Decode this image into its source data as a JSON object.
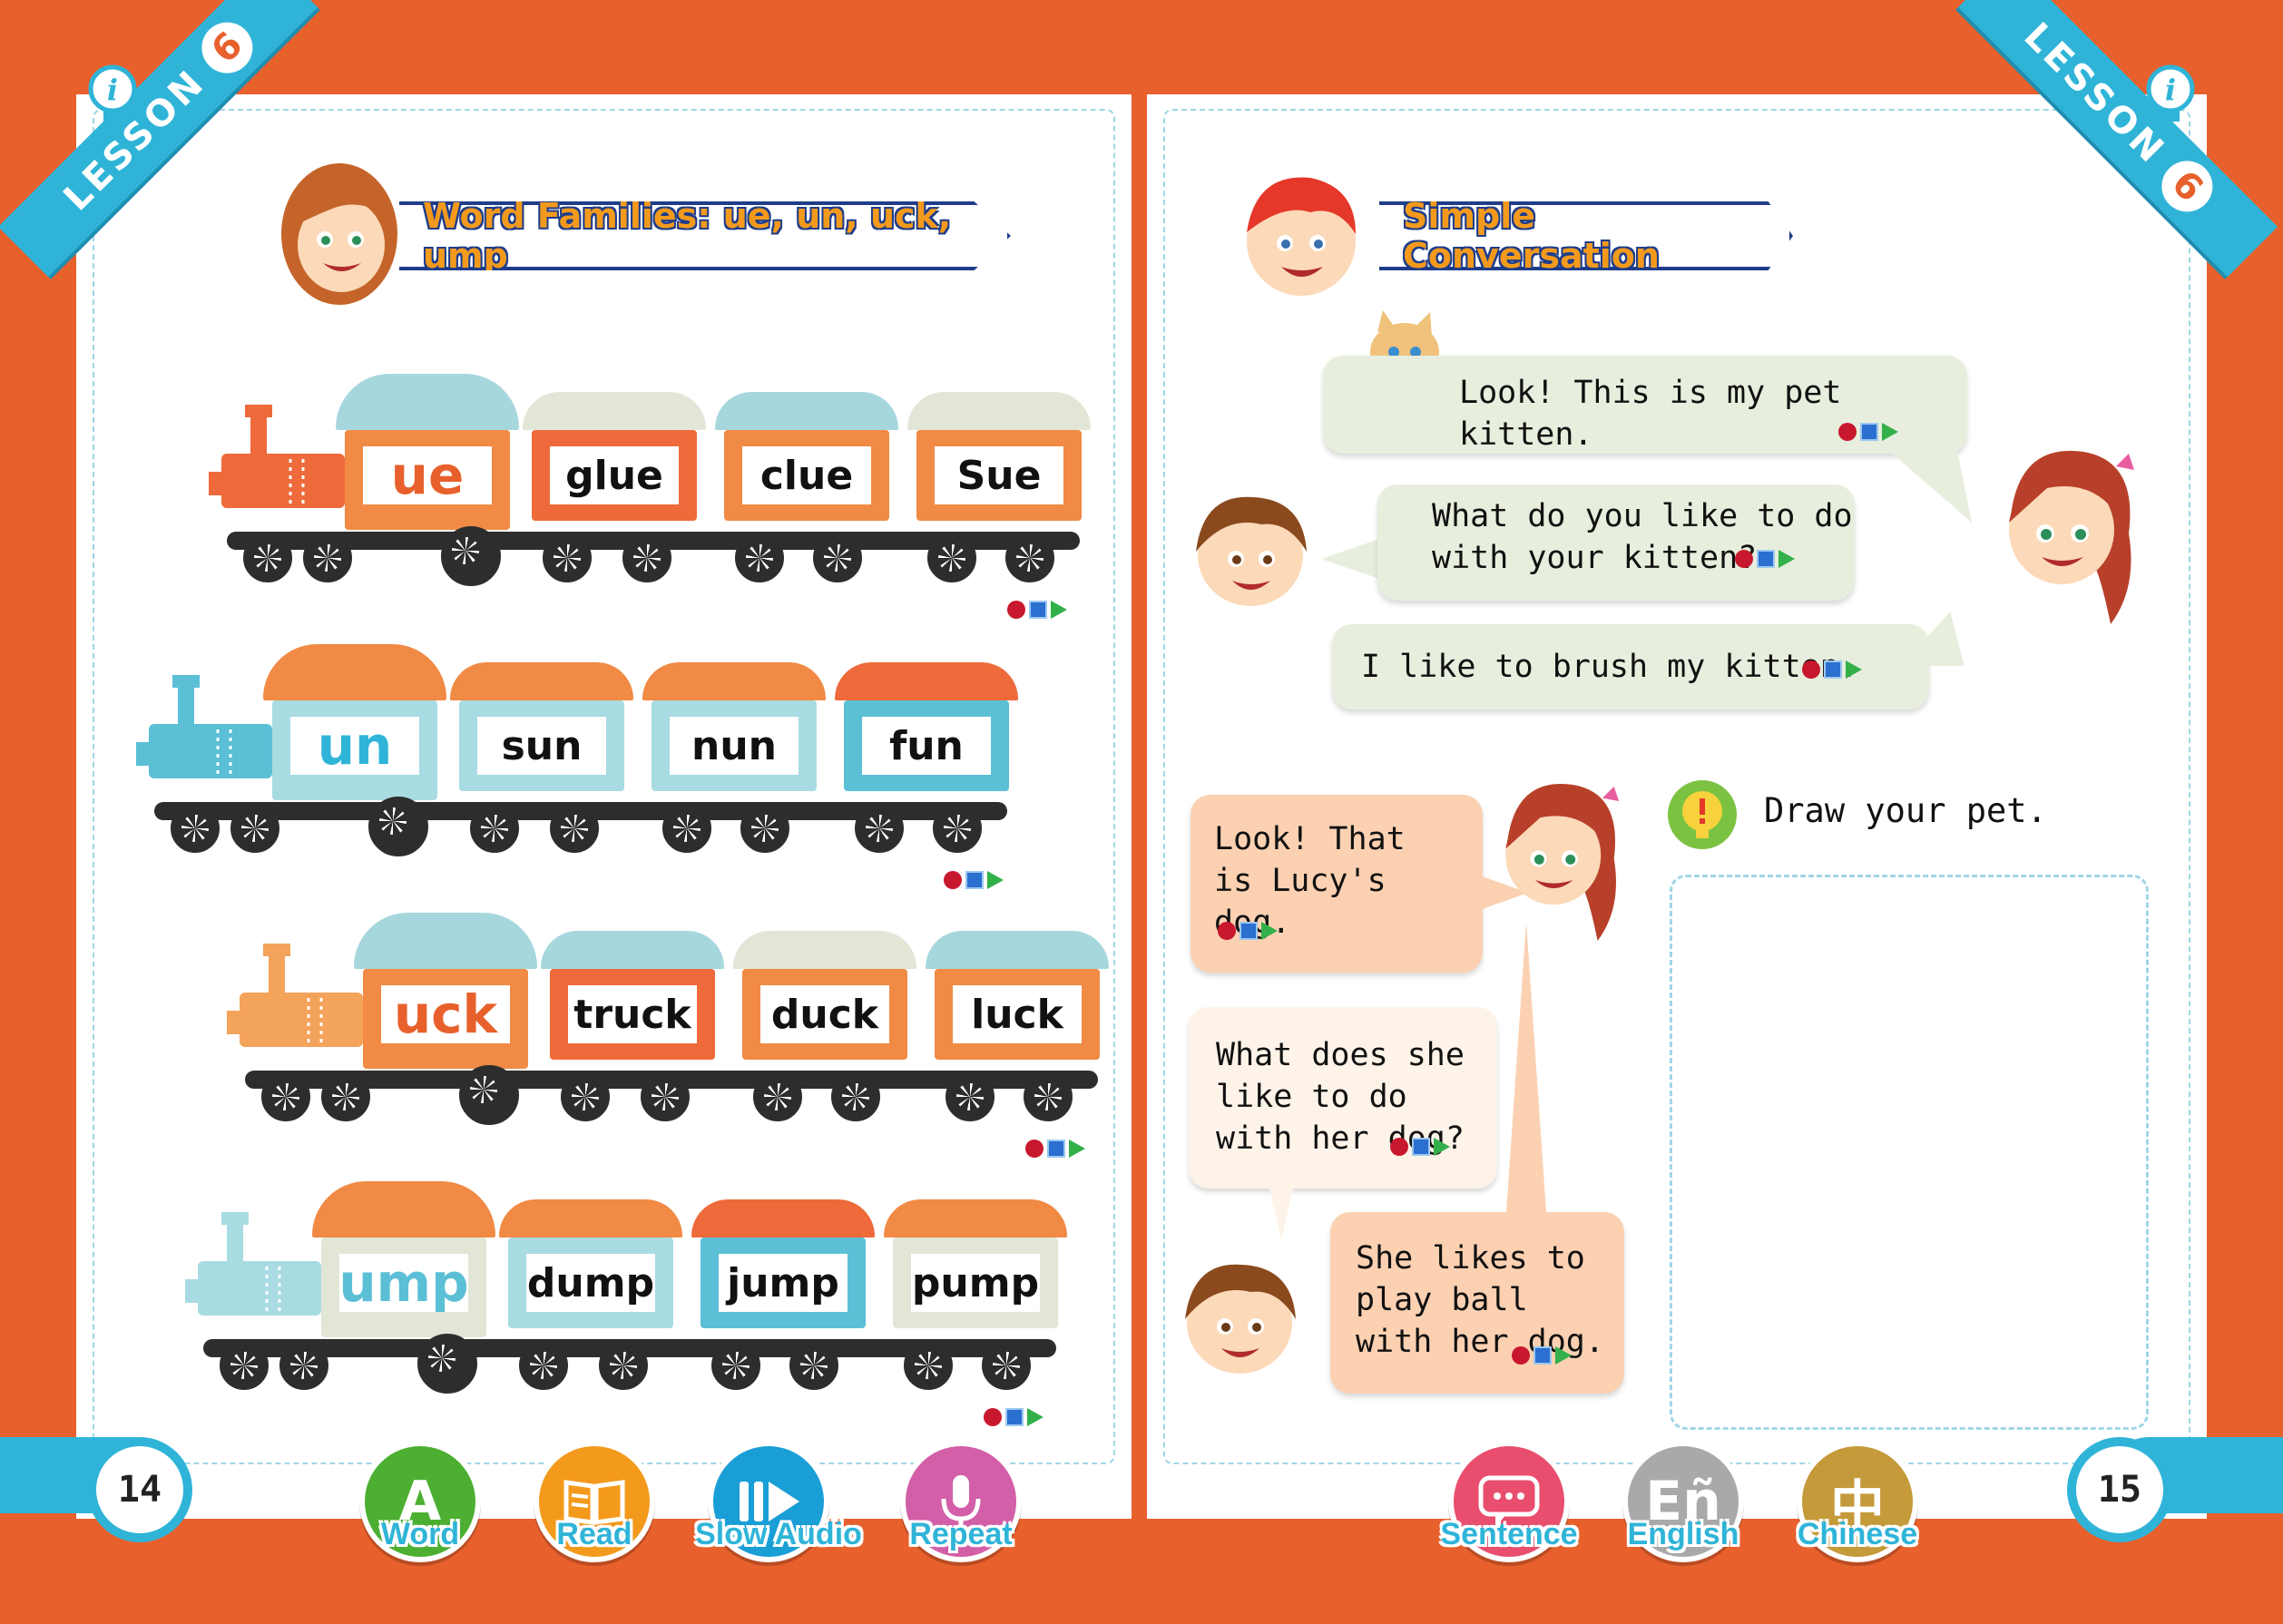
{
  "lesson": {
    "label": "LESSON",
    "number": "6"
  },
  "left_page": {
    "title": "Word Families: ue, un, uck, ump",
    "page_number": "14",
    "trains": [
      {
        "family": "ue",
        "words": [
          "glue",
          "clue",
          "Sue"
        ]
      },
      {
        "family": "un",
        "words": [
          "sun",
          "nun",
          "fun"
        ]
      },
      {
        "family": "uck",
        "words": [
          "truck",
          "duck",
          "luck"
        ]
      },
      {
        "family": "ump",
        "words": [
          "dump",
          "jump",
          "pump"
        ]
      }
    ]
  },
  "right_page": {
    "title": "Simple Conversation",
    "page_number": "15",
    "conversation_1": [
      "Look! This is my pet kitten.",
      "What do you like to do with your kitten?",
      "I like to brush my kitten."
    ],
    "conversation_2": [
      "Look! That is Lucy's dog.",
      "What does she like to do with her dog?",
      "She likes to play ball with her dog."
    ],
    "prompt": "Draw your pet."
  },
  "toolbar": {
    "word": "Word",
    "read": "Read",
    "slow_audio": "Slow Audio",
    "repeat": "Repeat",
    "sentence": "Sentence",
    "english": "English",
    "chinese": "Chinese",
    "english_glyph": "Eñ",
    "chinese_glyph": "中",
    "word_glyph": "A"
  },
  "colors": {
    "background": "#e8602c",
    "accent_blue": "#2fb4d8",
    "orange_car": "#f08a44",
    "teal_car": "#5bbfd6",
    "word_button": "#4caf32",
    "read_button": "#f39a1c",
    "slow_audio_button": "#1a9ed6",
    "repeat_button": "#d35fa8",
    "sentence_button": "#e94e6e",
    "english_button": "#a9a9a9",
    "chinese_button": "#c49a3a"
  }
}
